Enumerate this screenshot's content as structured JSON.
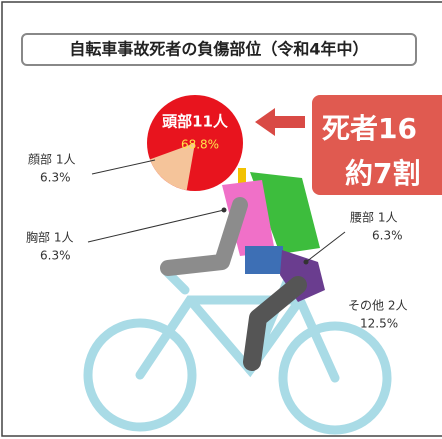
{
  "title": "自転車事故死者の負傷部位（令和4年中）",
  "head": {
    "label": "頭部11人",
    "percent": "68.8%"
  },
  "parts": [
    {
      "label": "顔部 1人",
      "percent": "6.3%"
    },
    {
      "label": "胸部 1人",
      "percent": "6.3%"
    },
    {
      "label": "腰部 1人",
      "percent": "6.3%"
    },
    {
      "label": "その他 2人",
      "percent": "12.5%"
    }
  ],
  "callout": {
    "line1": "死者16",
    "line2": "約7割"
  }
}
